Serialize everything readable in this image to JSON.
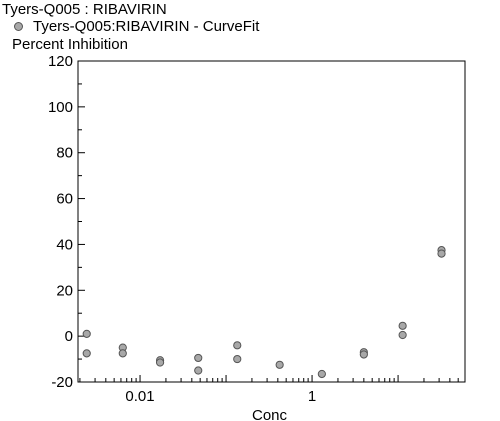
{
  "chart_data": {
    "type": "scatter",
    "title": "Tyers-Q005  :  RIBAVIRIN",
    "legend": [
      {
        "label": "Tyers-Q005:RIBAVIRIN - CurveFit",
        "color": "#a8a8a8"
      }
    ],
    "ylabel": "Percent  Inhibition",
    "xlabel": "Conc",
    "x_scale": "log",
    "xlim": [
      0.0019,
      60
    ],
    "ylim": [
      -20,
      120
    ],
    "y_ticks": [
      -20,
      0,
      20,
      40,
      60,
      80,
      100,
      120
    ],
    "x_ticks": [
      {
        "value": 0.01,
        "label": "0.01"
      },
      {
        "value": 1,
        "label": "1"
      }
    ],
    "grid": false,
    "series": [
      {
        "color": "#a8a8a8",
        "points": [
          {
            "x": 0.0024,
            "y": 1
          },
          {
            "x": 0.0024,
            "y": -7.5
          },
          {
            "x": 0.0063,
            "y": -5
          },
          {
            "x": 0.0063,
            "y": -7.5
          },
          {
            "x": 0.0171,
            "y": -10.5
          },
          {
            "x": 0.0171,
            "y": -11.5
          },
          {
            "x": 0.0475,
            "y": -9.5
          },
          {
            "x": 0.0475,
            "y": -15
          },
          {
            "x": 0.135,
            "y": -4
          },
          {
            "x": 0.135,
            "y": -10
          },
          {
            "x": 0.42,
            "y": -12.5
          },
          {
            "x": 1.3,
            "y": -16.5
          },
          {
            "x": 4.0,
            "y": -7
          },
          {
            "x": 4.0,
            "y": -8
          },
          {
            "x": 11.3,
            "y": 4.5
          },
          {
            "x": 11.3,
            "y": 0.5
          },
          {
            "x": 32,
            "y": 37.5
          },
          {
            "x": 32,
            "y": 36
          }
        ]
      }
    ]
  }
}
